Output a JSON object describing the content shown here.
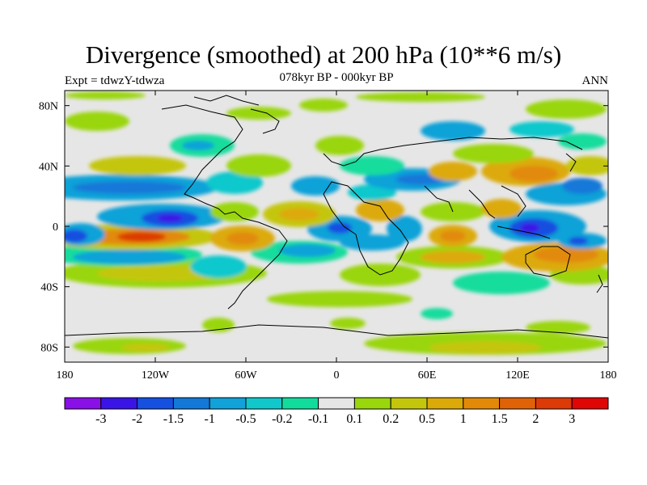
{
  "header": {
    "title": "Divergence (smoothed) at 200 hPa (10**6 m/s)",
    "left_label": "Expt = tdwzY-tdwza",
    "center_label": "078kyr BP - 000kyr BP",
    "right_label": "ANN"
  },
  "map": {
    "x_ticks": [
      {
        "lon": -180,
        "label": "180"
      },
      {
        "lon": -120,
        "label": "120W"
      },
      {
        "lon": -60,
        "label": "60W"
      },
      {
        "lon": 0,
        "label": "0"
      },
      {
        "lon": 60,
        "label": "60E"
      },
      {
        "lon": 120,
        "label": "120E"
      },
      {
        "lon": 180,
        "label": "180"
      }
    ],
    "y_ticks": [
      {
        "lat": 80,
        "label": "80N"
      },
      {
        "lat": 40,
        "label": "40N"
      },
      {
        "lat": 0,
        "label": "0"
      },
      {
        "lat": -40,
        "label": "40S"
      },
      {
        "lat": -80,
        "label": "80S"
      }
    ],
    "lon_range": [
      -180,
      180
    ],
    "lat_range": [
      -90,
      90
    ],
    "missing_color": "#e6e6e6"
  },
  "colorbar": {
    "colors": [
      "#8a10e8",
      "#3a14e6",
      "#1650e0",
      "#1478d8",
      "#10a2d8",
      "#10c8cc",
      "#12dc9c",
      "#e6e6e6",
      "#9ad60c",
      "#c4c60c",
      "#dcaa08",
      "#e28a08",
      "#e06206",
      "#dc3a06",
      "#e00606"
    ],
    "labels": [
      "-3",
      "-2",
      "-1.5",
      "-1",
      "-0.5",
      "-0.2",
      "-0.1",
      "0.1",
      "0.2",
      "0.5",
      "1",
      "1.5",
      "2",
      "3"
    ]
  }
}
